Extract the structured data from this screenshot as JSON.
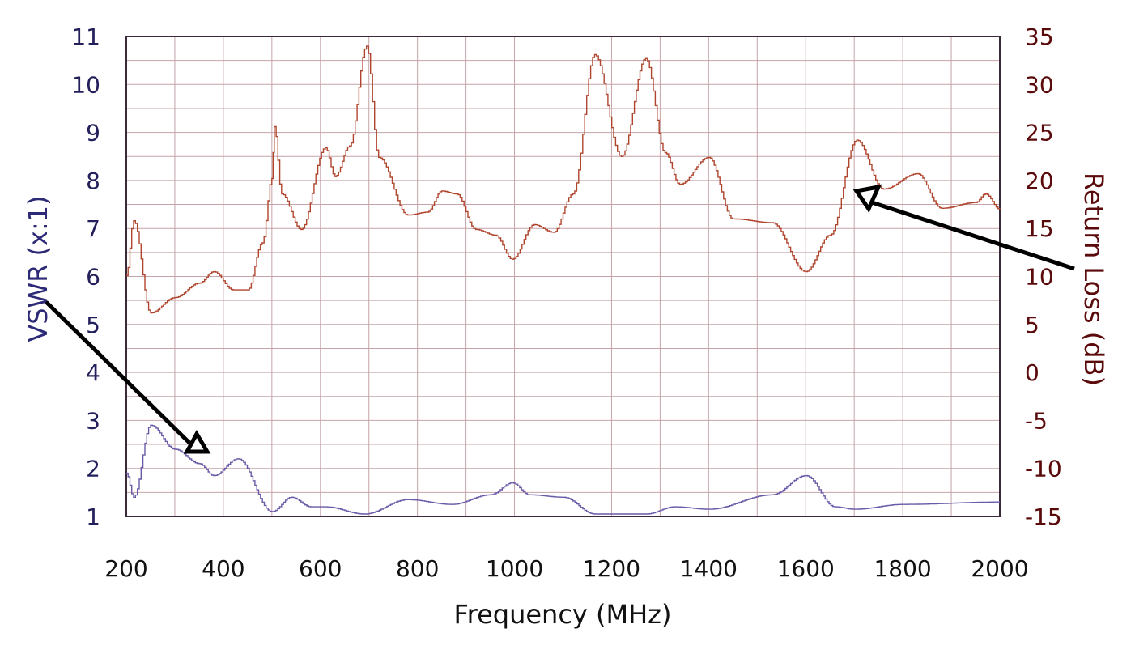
{
  "chart_data": {
    "type": "line",
    "title": "",
    "xlabel": "Frequency (MHz)",
    "ylabel": "VSWR (x:1)",
    "ylabel_right": "Return Loss (dB)",
    "xlim": [
      200,
      2000
    ],
    "ylim": [
      1,
      11
    ],
    "ylim_right": [
      -15,
      35
    ],
    "grid": true,
    "x_ticks": [
      200,
      400,
      600,
      800,
      1000,
      1200,
      1400,
      1600,
      1800,
      2000
    ],
    "y_ticks_left": [
      1,
      2,
      3,
      4,
      5,
      6,
      7,
      8,
      9,
      10,
      11
    ],
    "y_ticks_right": [
      -15,
      -10,
      -5,
      0,
      5,
      10,
      15,
      20,
      25,
      30,
      35
    ],
    "series": [
      {
        "name": "Return Loss (dB)",
        "axis": "right",
        "color": "#b0452e",
        "x": [
          200,
          215,
          250,
          300,
          350,
          380,
          420,
          450,
          480,
          500,
          505,
          520,
          560,
          610,
          630,
          660,
          695,
          720,
          780,
          820,
          850,
          880,
          920,
          960,
          995,
          1040,
          1080,
          1120,
          1165,
          1220,
          1270,
          1310,
          1340,
          1400,
          1450,
          1530,
          1600,
          1650,
          1705,
          1760,
          1830,
          1880,
          1950,
          1970,
          2000
        ],
        "values": [
          10.1,
          15.8,
          6.2,
          7.8,
          9.3,
          10.5,
          8.6,
          8.6,
          13.5,
          20.2,
          25.6,
          18.6,
          14.9,
          23.4,
          20.4,
          23.6,
          34.0,
          22.4,
          16.4,
          16.7,
          18.9,
          18.6,
          14.9,
          14.3,
          11.8,
          15.4,
          14.6,
          18.6,
          33.1,
          22.5,
          32.7,
          22.9,
          19.6,
          22.4,
          16.0,
          15.6,
          10.5,
          14.3,
          24.2,
          19.1,
          20.7,
          17.1,
          17.7,
          18.6,
          17.0
        ]
      },
      {
        "name": "VSWR (x:1)",
        "axis": "left",
        "color": "#6a5aa8",
        "x": [
          200,
          215,
          250,
          300,
          350,
          380,
          430,
          500,
          540,
          580,
          610,
          690,
          780,
          870,
          950,
          995,
          1030,
          1100,
          1165,
          1270,
          1330,
          1400,
          1530,
          1600,
          1660,
          1700,
          1800,
          2000
        ],
        "values": [
          1.9,
          1.4,
          2.9,
          2.4,
          2.1,
          1.85,
          2.2,
          1.1,
          1.4,
          1.2,
          1.2,
          1.05,
          1.35,
          1.25,
          1.45,
          1.7,
          1.45,
          1.4,
          1.05,
          1.05,
          1.2,
          1.15,
          1.45,
          1.85,
          1.2,
          1.15,
          1.25,
          1.3
        ]
      }
    ],
    "annotations": [
      {
        "type": "arrow",
        "from_label": "VSWR (x:1)",
        "points_to": "VSWR curve near 350 MHz"
      },
      {
        "type": "arrow",
        "from_label": "Return Loss (dB)",
        "points_to": "Return Loss curve near 1700 MHz"
      }
    ]
  },
  "labels": {
    "xlabel": "Frequency (MHz)",
    "ylabel_left": "VSWR (x:1)",
    "ylabel_right": "Return Loss (dB)"
  },
  "colors": {
    "grid": "#c4a4a8",
    "frame": "#3a2a3a",
    "return_loss": "#b0452e",
    "vswr": "#6a5aa8",
    "left_ticks": "#23205c",
    "right_ticks": "#5a0a0a",
    "arrow": "#000000"
  }
}
